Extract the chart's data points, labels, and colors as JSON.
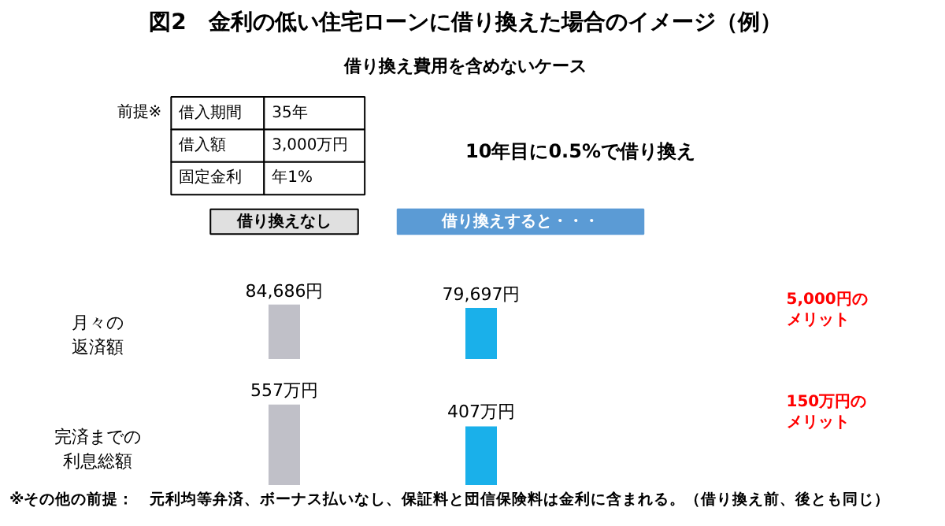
{
  "chart_data": [
    {
      "type": "bar",
      "title": "図2　金利の低い住宅ローンに借り換えた場合のイメージ（例）",
      "subtitle": "借り換え費用を含めないケース",
      "categories": [
        "借り換えなし",
        "借り換えすると・・・"
      ],
      "ylabel": "月々の返済額",
      "values": [
        84686,
        79697
      ],
      "colors": [
        "#c0c0c8",
        "#1ab0ea"
      ],
      "value_labels": [
        "84,686円",
        "79,697円"
      ],
      "annotations": [
        "前提※",
        "借入期間",
        "35年",
        "借入額",
        "3,000万円",
        "固定金利",
        "年1%",
        "10年目に0.5%で借り換え",
        "5,000円のメリット"
      ]
    },
    {
      "type": "bar",
      "categories": [
        null,
        null
      ],
      "ylabel": "完済までの利息総額",
      "values": [
        557,
        407
      ],
      "colors": [
        "#c0c0c8",
        "#1ab0ea"
      ],
      "value_labels": [
        "557万円",
        "407万円"
      ],
      "annotations": [
        "150万円のメリット",
        "※その他の前提：　元利均等弁済、ボーナス払いなし、保証料と団信保険料は金利に含まれる。（借り換え前、後とも同じ）"
      ]
    }
  ]
}
